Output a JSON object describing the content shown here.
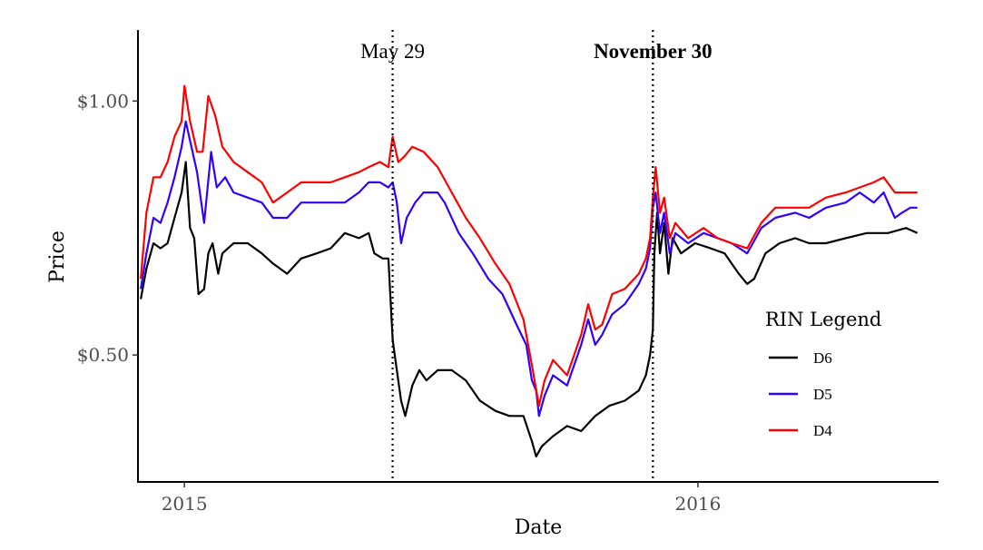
{
  "chart_data": {
    "type": "line",
    "xlabel": "Date",
    "ylabel": "Price",
    "x_range": [
      "2014-11-29",
      "2016-06-20"
    ],
    "ylim": [
      0.25,
      1.14
    ],
    "y_ticks": [
      {
        "value": 1.0,
        "label": "$1.00"
      },
      {
        "value": 0.5,
        "label": "$0.50"
      }
    ],
    "x_ticks": [
      {
        "value": "2015-01-01",
        "label": "2015"
      },
      {
        "value": "2016-01-01",
        "label": "2016"
      }
    ],
    "grid": false,
    "annotations": [
      {
        "date": "2015-05-29",
        "label": "May 29",
        "bold": false
      },
      {
        "date": "2015-11-30",
        "label": "November 30",
        "bold": true
      }
    ],
    "legend": {
      "title": "RIN Legend",
      "position": "right"
    },
    "series": [
      {
        "name": "D6",
        "color": "#000000",
        "points": [
          [
            "2014-12-01",
            0.61
          ],
          [
            "2014-12-05",
            0.67
          ],
          [
            "2014-12-10",
            0.72
          ],
          [
            "2014-12-15",
            0.71
          ],
          [
            "2014-12-20",
            0.72
          ],
          [
            "2014-12-25",
            0.77
          ],
          [
            "2014-12-30",
            0.82
          ],
          [
            "2015-01-02",
            0.88
          ],
          [
            "2015-01-05",
            0.75
          ],
          [
            "2015-01-08",
            0.73
          ],
          [
            "2015-01-11",
            0.62
          ],
          [
            "2015-01-15",
            0.63
          ],
          [
            "2015-01-18",
            0.7
          ],
          [
            "2015-01-21",
            0.72
          ],
          [
            "2015-01-25",
            0.66
          ],
          [
            "2015-01-28",
            0.7
          ],
          [
            "2015-02-05",
            0.72
          ],
          [
            "2015-02-15",
            0.72
          ],
          [
            "2015-02-25",
            0.7
          ],
          [
            "2015-03-05",
            0.68
          ],
          [
            "2015-03-15",
            0.66
          ],
          [
            "2015-03-25",
            0.69
          ],
          [
            "2015-04-05",
            0.7
          ],
          [
            "2015-04-15",
            0.71
          ],
          [
            "2015-04-25",
            0.74
          ],
          [
            "2015-05-05",
            0.73
          ],
          [
            "2015-05-12",
            0.74
          ],
          [
            "2015-05-16",
            0.7
          ],
          [
            "2015-05-22",
            0.69
          ],
          [
            "2015-05-26",
            0.69
          ],
          [
            "2015-05-29",
            0.53
          ],
          [
            "2015-06-01",
            0.47
          ],
          [
            "2015-06-04",
            0.41
          ],
          [
            "2015-06-07",
            0.38
          ],
          [
            "2015-06-12",
            0.44
          ],
          [
            "2015-06-17",
            0.47
          ],
          [
            "2015-06-22",
            0.45
          ],
          [
            "2015-06-30",
            0.47
          ],
          [
            "2015-07-10",
            0.47
          ],
          [
            "2015-07-20",
            0.45
          ],
          [
            "2015-07-30",
            0.41
          ],
          [
            "2015-08-10",
            0.39
          ],
          [
            "2015-08-20",
            0.38
          ],
          [
            "2015-08-30",
            0.38
          ],
          [
            "2015-09-05",
            0.33
          ],
          [
            "2015-09-08",
            0.3
          ],
          [
            "2015-09-12",
            0.32
          ],
          [
            "2015-09-20",
            0.34
          ],
          [
            "2015-09-30",
            0.36
          ],
          [
            "2015-10-10",
            0.35
          ],
          [
            "2015-10-20",
            0.38
          ],
          [
            "2015-10-30",
            0.4
          ],
          [
            "2015-11-10",
            0.41
          ],
          [
            "2015-11-20",
            0.43
          ],
          [
            "2015-11-25",
            0.46
          ],
          [
            "2015-11-28",
            0.5
          ],
          [
            "2015-11-30",
            0.55
          ],
          [
            "2015-12-01",
            0.7
          ],
          [
            "2015-12-03",
            0.78
          ],
          [
            "2015-12-05",
            0.7
          ],
          [
            "2015-12-08",
            0.76
          ],
          [
            "2015-12-11",
            0.66
          ],
          [
            "2015-12-14",
            0.73
          ],
          [
            "2015-12-20",
            0.7
          ],
          [
            "2015-12-30",
            0.72
          ],
          [
            "2016-01-10",
            0.71
          ],
          [
            "2016-01-20",
            0.7
          ],
          [
            "2016-01-30",
            0.66
          ],
          [
            "2016-02-05",
            0.64
          ],
          [
            "2016-02-10",
            0.65
          ],
          [
            "2016-02-18",
            0.7
          ],
          [
            "2016-02-28",
            0.72
          ],
          [
            "2016-03-10",
            0.73
          ],
          [
            "2016-03-20",
            0.72
          ],
          [
            "2016-04-01",
            0.72
          ],
          [
            "2016-04-15",
            0.73
          ],
          [
            "2016-04-30",
            0.74
          ],
          [
            "2016-05-15",
            0.74
          ],
          [
            "2016-05-28",
            0.75
          ],
          [
            "2016-06-05",
            0.74
          ]
        ]
      },
      {
        "name": "D5",
        "color": "#3300ff",
        "points": [
          [
            "2014-12-01",
            0.63
          ],
          [
            "2014-12-05",
            0.7
          ],
          [
            "2014-12-10",
            0.77
          ],
          [
            "2014-12-15",
            0.76
          ],
          [
            "2014-12-20",
            0.8
          ],
          [
            "2014-12-25",
            0.85
          ],
          [
            "2014-12-30",
            0.91
          ],
          [
            "2015-01-02",
            0.96
          ],
          [
            "2015-01-06",
            0.91
          ],
          [
            "2015-01-10",
            0.86
          ],
          [
            "2015-01-15",
            0.76
          ],
          [
            "2015-01-20",
            0.9
          ],
          [
            "2015-01-24",
            0.83
          ],
          [
            "2015-01-30",
            0.85
          ],
          [
            "2015-02-05",
            0.82
          ],
          [
            "2015-02-15",
            0.81
          ],
          [
            "2015-02-25",
            0.8
          ],
          [
            "2015-03-05",
            0.77
          ],
          [
            "2015-03-15",
            0.77
          ],
          [
            "2015-03-25",
            0.8
          ],
          [
            "2015-04-05",
            0.8
          ],
          [
            "2015-04-15",
            0.8
          ],
          [
            "2015-04-25",
            0.8
          ],
          [
            "2015-05-05",
            0.82
          ],
          [
            "2015-05-12",
            0.84
          ],
          [
            "2015-05-20",
            0.84
          ],
          [
            "2015-05-26",
            0.83
          ],
          [
            "2015-05-29",
            0.84
          ],
          [
            "2015-06-01",
            0.8
          ],
          [
            "2015-06-04",
            0.72
          ],
          [
            "2015-06-08",
            0.77
          ],
          [
            "2015-06-14",
            0.8
          ],
          [
            "2015-06-20",
            0.82
          ],
          [
            "2015-06-30",
            0.82
          ],
          [
            "2015-07-05",
            0.8
          ],
          [
            "2015-07-15",
            0.74
          ],
          [
            "2015-07-25",
            0.7
          ],
          [
            "2015-08-05",
            0.65
          ],
          [
            "2015-08-15",
            0.62
          ],
          [
            "2015-08-25",
            0.56
          ],
          [
            "2015-09-01",
            0.52
          ],
          [
            "2015-09-05",
            0.45
          ],
          [
            "2015-09-08",
            0.43
          ],
          [
            "2015-09-10",
            0.38
          ],
          [
            "2015-09-14",
            0.42
          ],
          [
            "2015-09-20",
            0.46
          ],
          [
            "2015-09-30",
            0.44
          ],
          [
            "2015-10-10",
            0.52
          ],
          [
            "2015-10-15",
            0.57
          ],
          [
            "2015-10-20",
            0.52
          ],
          [
            "2015-10-25",
            0.54
          ],
          [
            "2015-11-01",
            0.58
          ],
          [
            "2015-11-10",
            0.6
          ],
          [
            "2015-11-20",
            0.64
          ],
          [
            "2015-11-25",
            0.67
          ],
          [
            "2015-11-28",
            0.71
          ],
          [
            "2015-11-30",
            0.79
          ],
          [
            "2015-12-02",
            0.82
          ],
          [
            "2015-12-05",
            0.74
          ],
          [
            "2015-12-08",
            0.78
          ],
          [
            "2015-12-12",
            0.7
          ],
          [
            "2015-12-16",
            0.74
          ],
          [
            "2015-12-25",
            0.72
          ],
          [
            "2016-01-05",
            0.74
          ],
          [
            "2016-01-15",
            0.73
          ],
          [
            "2016-01-25",
            0.72
          ],
          [
            "2016-02-05",
            0.7
          ],
          [
            "2016-02-15",
            0.75
          ],
          [
            "2016-02-25",
            0.77
          ],
          [
            "2016-03-10",
            0.78
          ],
          [
            "2016-03-20",
            0.77
          ],
          [
            "2016-04-01",
            0.79
          ],
          [
            "2016-04-15",
            0.8
          ],
          [
            "2016-04-25",
            0.82
          ],
          [
            "2016-05-05",
            0.8
          ],
          [
            "2016-05-12",
            0.82
          ],
          [
            "2016-05-20",
            0.77
          ],
          [
            "2016-05-25",
            0.78
          ],
          [
            "2016-05-31",
            0.79
          ],
          [
            "2016-06-05",
            0.79
          ]
        ]
      },
      {
        "name": "D4",
        "color": "#ff0000",
        "points": [
          [
            "2014-12-01",
            0.65
          ],
          [
            "2014-12-05",
            0.78
          ],
          [
            "2014-12-10",
            0.85
          ],
          [
            "2014-12-15",
            0.85
          ],
          [
            "2014-12-20",
            0.88
          ],
          [
            "2014-12-25",
            0.93
          ],
          [
            "2014-12-30",
            0.96
          ],
          [
            "2015-01-01",
            1.03
          ],
          [
            "2015-01-05",
            0.96
          ],
          [
            "2015-01-10",
            0.9
          ],
          [
            "2015-01-14",
            0.9
          ],
          [
            "2015-01-18",
            1.01
          ],
          [
            "2015-01-23",
            0.97
          ],
          [
            "2015-01-28",
            0.91
          ],
          [
            "2015-02-05",
            0.88
          ],
          [
            "2015-02-15",
            0.86
          ],
          [
            "2015-02-25",
            0.84
          ],
          [
            "2015-03-05",
            0.8
          ],
          [
            "2015-03-15",
            0.82
          ],
          [
            "2015-03-25",
            0.84
          ],
          [
            "2015-04-05",
            0.84
          ],
          [
            "2015-04-15",
            0.84
          ],
          [
            "2015-04-25",
            0.85
          ],
          [
            "2015-05-05",
            0.86
          ],
          [
            "2015-05-12",
            0.87
          ],
          [
            "2015-05-20",
            0.88
          ],
          [
            "2015-05-26",
            0.87
          ],
          [
            "2015-05-29",
            0.93
          ],
          [
            "2015-06-02",
            0.88
          ],
          [
            "2015-06-06",
            0.89
          ],
          [
            "2015-06-12",
            0.91
          ],
          [
            "2015-06-20",
            0.9
          ],
          [
            "2015-06-30",
            0.87
          ],
          [
            "2015-07-10",
            0.82
          ],
          [
            "2015-07-20",
            0.77
          ],
          [
            "2015-07-30",
            0.73
          ],
          [
            "2015-08-10",
            0.68
          ],
          [
            "2015-08-20",
            0.64
          ],
          [
            "2015-08-30",
            0.57
          ],
          [
            "2015-09-05",
            0.48
          ],
          [
            "2015-09-10",
            0.4
          ],
          [
            "2015-09-14",
            0.45
          ],
          [
            "2015-09-20",
            0.49
          ],
          [
            "2015-09-30",
            0.46
          ],
          [
            "2015-10-10",
            0.54
          ],
          [
            "2015-10-15",
            0.6
          ],
          [
            "2015-10-20",
            0.55
          ],
          [
            "2015-10-25",
            0.56
          ],
          [
            "2015-11-01",
            0.62
          ],
          [
            "2015-11-10",
            0.63
          ],
          [
            "2015-11-20",
            0.66
          ],
          [
            "2015-11-25",
            0.69
          ],
          [
            "2015-11-28",
            0.73
          ],
          [
            "2015-11-30",
            0.81
          ],
          [
            "2015-12-02",
            0.87
          ],
          [
            "2015-12-05",
            0.78
          ],
          [
            "2015-12-08",
            0.81
          ],
          [
            "2015-12-12",
            0.73
          ],
          [
            "2015-12-16",
            0.76
          ],
          [
            "2015-12-25",
            0.73
          ],
          [
            "2016-01-05",
            0.75
          ],
          [
            "2016-01-15",
            0.73
          ],
          [
            "2016-01-25",
            0.72
          ],
          [
            "2016-02-05",
            0.71
          ],
          [
            "2016-02-15",
            0.76
          ],
          [
            "2016-02-25",
            0.79
          ],
          [
            "2016-03-10",
            0.79
          ],
          [
            "2016-03-20",
            0.79
          ],
          [
            "2016-04-01",
            0.81
          ],
          [
            "2016-04-15",
            0.82
          ],
          [
            "2016-04-25",
            0.83
          ],
          [
            "2016-05-05",
            0.84
          ],
          [
            "2016-05-12",
            0.85
          ],
          [
            "2016-05-20",
            0.82
          ],
          [
            "2016-05-31",
            0.82
          ],
          [
            "2016-06-05",
            0.82
          ]
        ]
      }
    ]
  }
}
